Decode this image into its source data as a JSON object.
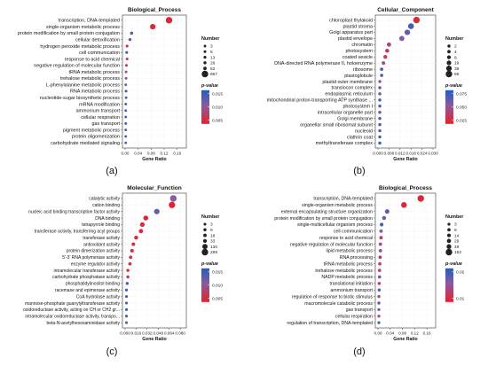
{
  "figure": {
    "panel_labels": [
      "(a)",
      "(b)",
      "(c)",
      "(d)"
    ]
  },
  "chart_data": [
    {
      "type": "scatter",
      "title": "Biological_Process",
      "xlabel": "Gene Ratio",
      "xticks": [
        "0.00",
        "0.04",
        "0.08",
        "0.12",
        "0.16"
      ],
      "xlim": [
        0,
        0.18
      ],
      "categories": [
        "transcription, DNA-templated",
        "single-organism metabolic process",
        "protein modification by small protein conjugation",
        "cellular detoxification",
        "hydrogen peroxide metabolic process",
        "cell communication",
        "response to acid chemical",
        "negative regulation of molecular function",
        "tRNA metabolic process",
        "trehalose metabolic process",
        "L-phenylalanine metabolic process",
        "RNA metabolic process",
        "nucleotide-sugar biosynthetic process",
        "mRNA modification",
        "ammonium transport",
        "cellular respiration",
        "gas transport",
        "pigment metabolic process",
        "protein oligomerization",
        "carbohydrate mediated signaling"
      ],
      "gene_ratio": [
        0.135,
        0.085,
        0.02,
        0.015,
        0.006,
        0.005,
        0.006,
        0.004,
        0.003,
        0.003,
        0.002,
        0.003,
        0.003,
        0.002,
        0.002,
        0.002,
        0.002,
        0.002,
        0.002,
        0.002
      ],
      "number": [
        867,
        500,
        40,
        25,
        10,
        10,
        10,
        8,
        6,
        5,
        4,
        6,
        5,
        3,
        3,
        3,
        3,
        3,
        3,
        3
      ],
      "p_value": [
        0.001,
        0.0012,
        0.011,
        0.012,
        0.002,
        0.013,
        0.004,
        0.003,
        0.007,
        0.009,
        0.01,
        0.014,
        0.012,
        0.013,
        0.014,
        0.013,
        0.014,
        0.012,
        0.013,
        0.012
      ],
      "legend": {
        "number_title": "Number",
        "number_labels": [
          "3",
          "6",
          "13",
          "26",
          "52",
          "867"
        ],
        "color_title": "p-value",
        "color_ticks": [
          "0.015",
          "0.010",
          "0.005"
        ]
      }
    },
    {
      "type": "scatter",
      "title": "Cellular_Component",
      "xlabel": "Gene Ratio",
      "xticks": [
        "0.000",
        "0.006",
        "0.012",
        "0.018",
        "0.024",
        "0.030"
      ],
      "xlim": [
        0,
        0.03
      ],
      "categories": [
        "chloroplast thylakoid",
        "plastid stroma",
        "Golgi apparatus part",
        "plastid envelope",
        "chromatin",
        "photosystem",
        "coated vesicle",
        "DNA-directed RNA polymerase II, holoenzyme",
        "ribosome",
        "plastoglobule",
        "plastid outer membrane",
        "translocon complex",
        "endoplasmic reticulum",
        "mitochondrial proton-transporting ATP synthase ...",
        "photosystem I",
        "intracellular organelle part",
        "Golgi membrane",
        "organellar small ribosomal subunit",
        "nucleoid",
        "clathrin coat",
        "methyltransferase complex"
      ],
      "gene_ratio": [
        0.021,
        0.018,
        0.016,
        0.013,
        0.006,
        0.005,
        0.004,
        0.003,
        0.002,
        0.002,
        0.001,
        0.001,
        0.001,
        0.001,
        0.001,
        0.001,
        0.001,
        0.001,
        0.001,
        0.001,
        0.001
      ],
      "number": [
        66,
        45,
        38,
        30,
        14,
        10,
        9,
        6,
        4,
        3,
        2,
        2,
        2,
        2,
        2,
        2,
        2,
        2,
        2,
        2,
        2
      ],
      "p_value": [
        0.025,
        0.07,
        0.06,
        0.05,
        0.04,
        0.03,
        0.035,
        0.045,
        0.065,
        0.07,
        0.05,
        0.068,
        0.06,
        0.07,
        0.065,
        0.06,
        0.07,
        0.068,
        0.07,
        0.068,
        0.07
      ],
      "legend": {
        "number_title": "Number",
        "number_labels": [
          "2",
          "4",
          "8",
          "19",
          "39",
          "66"
        ],
        "color_title": "p-value",
        "color_ticks": [
          "0.075",
          "0.050",
          "0.025"
        ]
      }
    },
    {
      "type": "scatter",
      "title": "Molecular_Function",
      "xlabel": "Gene Ratio",
      "xticks": [
        "0.000",
        "0.016",
        "0.032",
        "0.048",
        "0.064",
        "0.080"
      ],
      "xlim": [
        0,
        0.085
      ],
      "categories": [
        "catalytic activity",
        "cation binding",
        "nucleic acid binding transcription factor activity",
        "DNA binding",
        "tetrapyrrole binding",
        "transferase activity, transferring acyl groups",
        "transferase activity",
        "antioxidant activity",
        "protein dimerization activity",
        "5'-3' RNA polymerase activity",
        "enzyme regulator activity",
        "intramolecular transferase activity",
        "carbohydrate phosphatase activity",
        "phosphatidylinositol binding",
        "racemase and epimerase activity",
        "CoA hydrolase activity",
        "mannose-phosphate guanylyltransferase activity",
        "oxidoreductase activity, acting on CH or CH2 gr...",
        "intramolecular oxidoreductase activity, transpo...",
        "beta-N-acetylhexosaminidase activity"
      ],
      "gene_ratio": [
        0.07,
        0.068,
        0.046,
        0.03,
        0.025,
        0.023,
        0.016,
        0.012,
        0.01,
        0.008,
        0.007,
        0.004,
        0.004,
        0.003,
        0.002,
        0.002,
        0.002,
        0.002,
        0.002,
        0.002
      ],
      "number": [
        269,
        250,
        150,
        100,
        80,
        60,
        40,
        30,
        25,
        18,
        15,
        8,
        8,
        6,
        4,
        3,
        3,
        3,
        3,
        3
      ],
      "p_value": [
        0.008,
        0.0005,
        0.011,
        0.001,
        0.0012,
        0.001,
        0.0015,
        0.002,
        0.002,
        0.003,
        0.003,
        0.002,
        0.002,
        0.013,
        0.014,
        0.013,
        0.012,
        0.014,
        0.013,
        0.012
      ],
      "legend": {
        "number_title": "Number",
        "number_labels": [
          "3",
          "9",
          "18",
          "33",
          "130",
          "269"
        ],
        "color_title": "p-value",
        "color_ticks": [
          "0.015",
          "0.010",
          "0.005"
        ]
      }
    },
    {
      "type": "scatter",
      "title": "Biological_Process",
      "xlabel": "Gene Ratio",
      "xticks": [
        "0.00",
        "0.04",
        "0.08",
        "0.12",
        "0.16"
      ],
      "xlim": [
        0,
        0.18
      ],
      "categories": [
        "transcription, DNA-templated",
        "single-organism metabolic process",
        "external encapsulating structure organization",
        "protein modification by small protein conjugation",
        "single-multicellular organism process",
        "cell communication",
        "response to acid chemical",
        "negative regulation of molecular function",
        "lipid metabolic process",
        "RNA processing",
        "tRNA metabolic process",
        "trehalose metabolic process",
        "NADP metabolic process",
        "translational initiation",
        "ammonium transport",
        "regulation of response to biotic stimulus",
        "macromolecule catabolic process",
        "gas transport",
        "cellular respiration",
        "regulation of transcription, DNA-templated"
      ],
      "gene_ratio": [
        0.14,
        0.085,
        0.03,
        0.02,
        0.012,
        0.01,
        0.01,
        0.008,
        0.008,
        0.007,
        0.006,
        0.005,
        0.005,
        0.004,
        0.004,
        0.003,
        0.003,
        0.003,
        0.003,
        0.003
      ],
      "number": [
        152,
        100,
        40,
        25,
        14,
        12,
        12,
        10,
        10,
        9,
        8,
        7,
        7,
        5,
        5,
        4,
        4,
        3,
        3,
        3
      ],
      "p_value": [
        0.001,
        0.002,
        0.014,
        0.012,
        0.016,
        0.01,
        0.005,
        0.008,
        0.011,
        0.004,
        0.006,
        0.007,
        0.012,
        0.005,
        0.015,
        0.008,
        0.016,
        0.012,
        0.007,
        0.016
      ],
      "legend": {
        "number_title": "Number",
        "number_labels": [
          "3",
          "8",
          "14",
          "29",
          "49",
          "152"
        ],
        "color_title": "p-value",
        "color_ticks": [
          "0.02",
          "0.01"
        ]
      }
    }
  ]
}
